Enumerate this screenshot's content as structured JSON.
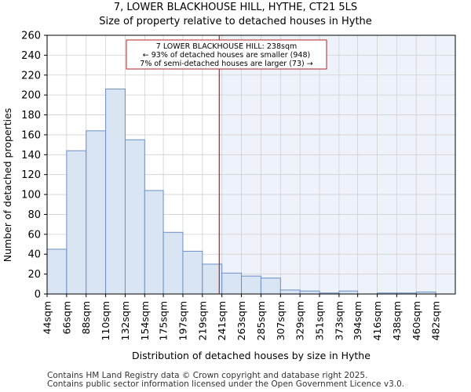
{
  "header": {
    "title": "7, LOWER BLACKHOUSE HILL, HYTHE, CT21 5LS",
    "subtitle": "Size of property relative to detached houses in Hythe"
  },
  "chart_data": {
    "type": "bar",
    "title": "7, LOWER BLACKHOUSE HILL, HYTHE, CT21 5LS",
    "subtitle": "Size of property relative to detached houses in Hythe",
    "xlabel": "Distribution of detached houses by size in Hythe",
    "ylabel": "Number of detached properties",
    "ylim": [
      0,
      260
    ],
    "yticks": [
      0,
      20,
      40,
      60,
      80,
      100,
      120,
      140,
      160,
      180,
      200,
      220,
      240,
      260
    ],
    "bin_edges": [
      44,
      66,
      88,
      110,
      132,
      154,
      175,
      197,
      219,
      241,
      263,
      285,
      307,
      329,
      351,
      373,
      394,
      416,
      438,
      460,
      482,
      504
    ],
    "categories": [
      "44sqm",
      "66sqm",
      "88sqm",
      "110sqm",
      "132sqm",
      "154sqm",
      "175sqm",
      "197sqm",
      "219sqm",
      "241sqm",
      "263sqm",
      "285sqm",
      "307sqm",
      "329sqm",
      "351sqm",
      "373sqm",
      "394sqm",
      "416sqm",
      "438sqm",
      "460sqm",
      "482sqm"
    ],
    "values": [
      45,
      144,
      164,
      206,
      155,
      104,
      62,
      43,
      30,
      21,
      18,
      16,
      4,
      3,
      1,
      3,
      0,
      1,
      1,
      2,
      0
    ],
    "marker": {
      "value": 238,
      "label_lines": [
        "7 LOWER BLACKHOUSE HILL: 238sqm",
        "← 93% of detached houses are smaller (948)",
        "7% of semi-detached houses are larger (73) →"
      ]
    },
    "colors": {
      "bar_fill": "#dae5f4",
      "bar_stroke": "#6a90c8",
      "marker": "#b22222",
      "shade": "#eef2fb",
      "grid": "#d0d0d0"
    }
  },
  "footer": {
    "line1": "Contains HM Land Registry data © Crown copyright and database right 2025.",
    "line2": "Contains public sector information licensed under the Open Government Licence v3.0."
  }
}
